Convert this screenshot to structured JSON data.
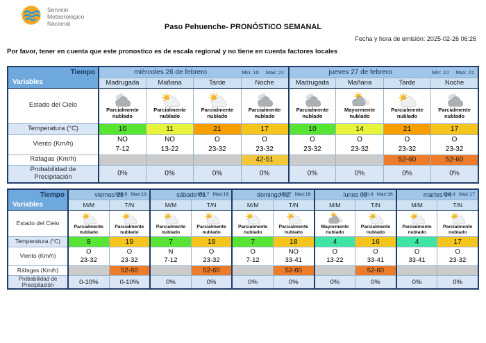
{
  "header": {
    "logo_icon": "smn-logo",
    "org_name_lines": [
      "Servicio",
      "Meteorológico",
      "Nacional"
    ],
    "title": "Paso Pehuenche- PRONÓSTICO SEMANAL",
    "emission": "Fecha y hora de emisión: 2025-02-26 06:26",
    "notice": "Por favor, tener en cuenta que este pronostico es de escala regional y no tiene en cuenta factores locales"
  },
  "row_labels": {
    "tiempo": "Tiempo",
    "variables": "Variables",
    "estado": "Estado del Cielo",
    "temperatura": "Temperatura (°C)",
    "viento": "Viento (Km/h)",
    "rafagas": "Ráfagas (Km/h)",
    "probabilidad": "Probabilidad de Precipitación"
  },
  "colors": {
    "header_blue": "#6FA8DC",
    "day_blue": "#9FC5E8",
    "period_blue": "#CFE2F3",
    "light_blue_row": "#D9E6F6",
    "empty_gust_gray": "#CBCBCB",
    "temp_teal": "#3FE5A3",
    "temp_green": "#57E432",
    "temp_yellow": "#E8F43C",
    "temp_amber": "#F6C51D",
    "temp_orange": "#F79E00",
    "gust_yellow": "#F2C83B",
    "gust_orange": "#EC7C29"
  },
  "table1": {
    "days": [
      {
        "name": "miércoles 26 de febrero",
        "min": "Min: 10",
        "max": "Max: 21"
      },
      {
        "name": "jueves 27 de febrero",
        "min": "Min: 10",
        "max": "Max: 21"
      }
    ],
    "periods": [
      "Madrugada",
      "Mañana",
      "Tarde",
      "Noche",
      "Madrugada",
      "Mañana",
      "Tarde",
      "Noche"
    ],
    "sky": [
      {
        "icon": "cloudy",
        "label": "Parcialmente nublado"
      },
      {
        "icon": "partly-cloudy-day",
        "label": "Parcialmente nublado"
      },
      {
        "icon": "partly-cloudy-day",
        "label": "Parcialmente nublado"
      },
      {
        "icon": "cloudy",
        "label": "Parcialmente nublado"
      },
      {
        "icon": "cloudy",
        "label": "Parcialmente nublado"
      },
      {
        "icon": "mostly-cloudy-day",
        "label": "Mayormente nublado"
      },
      {
        "icon": "partly-cloudy-day",
        "label": "Parcialmente nublado"
      },
      {
        "icon": "cloudy",
        "label": "Parcialmente nublado"
      }
    ],
    "temps": [
      {
        "value": "10",
        "bg": "#57E432"
      },
      {
        "value": "11",
        "bg": "#E8F43C"
      },
      {
        "value": "21",
        "bg": "#F79E00"
      },
      {
        "value": "17",
        "bg": "#F6C51D"
      },
      {
        "value": "10",
        "bg": "#57E432"
      },
      {
        "value": "14",
        "bg": "#E8F43C"
      },
      {
        "value": "21",
        "bg": "#F79E00"
      },
      {
        "value": "17",
        "bg": "#F6C51D"
      }
    ],
    "wind": [
      {
        "dir": "NO",
        "range": "7-12"
      },
      {
        "dir": "NO",
        "range": "13-22"
      },
      {
        "dir": "O",
        "range": "23-32"
      },
      {
        "dir": "O",
        "range": "23-32"
      },
      {
        "dir": "O",
        "range": "23-32"
      },
      {
        "dir": "O",
        "range": "23-32"
      },
      {
        "dir": "O",
        "range": "23-32"
      },
      {
        "dir": "O",
        "range": "23-32"
      }
    ],
    "gusts": [
      {
        "value": "",
        "bg": "#CBCBCB"
      },
      {
        "value": "",
        "bg": "#CBCBCB"
      },
      {
        "value": "",
        "bg": "#CBCBCB"
      },
      {
        "value": "42-51",
        "bg": "#F2C83B"
      },
      {
        "value": "",
        "bg": "#CBCBCB"
      },
      {
        "value": "",
        "bg": "#CBCBCB"
      },
      {
        "value": "52-60",
        "bg": "#EC7C29"
      },
      {
        "value": "52-60",
        "bg": "#EC7C29"
      }
    ],
    "precip": [
      "0%",
      "0%",
      "0%",
      "0%",
      "0%",
      "0%",
      "0%",
      "0%"
    ]
  },
  "table2": {
    "days": [
      {
        "name": "viernes 28",
        "min": "Min:8",
        "max": "Max:19"
      },
      {
        "name": "sábado 01",
        "min": "Min:7",
        "max": "Max:18"
      },
      {
        "name": "domingo 02",
        "min": "Min:7",
        "max": "Max:18"
      },
      {
        "name": "lunes 03",
        "min": "Min:4",
        "max": "Max:16"
      },
      {
        "name": "martes 04",
        "min": "Min:4",
        "max": "Max:17"
      }
    ],
    "periods": [
      "M/M",
      "T/N",
      "M/M",
      "T/N",
      "M/M",
      "T/N",
      "M/M",
      "T/N",
      "M/M",
      "T/N"
    ],
    "sky": [
      {
        "icon": "partly-cloudy-day",
        "label": "Parcialmente nublado"
      },
      {
        "icon": "partly-cloudy-day",
        "label": "Parcialmente nublado"
      },
      {
        "icon": "partly-cloudy-day",
        "label": "Parcialmente nublado"
      },
      {
        "icon": "partly-cloudy-day",
        "label": "Parcialmente nublado"
      },
      {
        "icon": "partly-cloudy-day",
        "label": "Parcialmente nublado"
      },
      {
        "icon": "partly-cloudy-day",
        "label": "Parcialmente nublado"
      },
      {
        "icon": "mostly-cloudy-day",
        "label": "Mayormente nublado"
      },
      {
        "icon": "partly-cloudy-day",
        "label": "Parcialmente nublado"
      },
      {
        "icon": "partly-cloudy-day",
        "label": "Parcialmente nublado"
      },
      {
        "icon": "partly-cloudy-day",
        "label": "Parcialmente nublado"
      }
    ],
    "temps": [
      {
        "value": "8",
        "bg": "#57E432"
      },
      {
        "value": "19",
        "bg": "#F6C51D"
      },
      {
        "value": "7",
        "bg": "#57E432"
      },
      {
        "value": "18",
        "bg": "#F6C51D"
      },
      {
        "value": "7",
        "bg": "#57E432"
      },
      {
        "value": "18",
        "bg": "#F6C51D"
      },
      {
        "value": "4",
        "bg": "#3FE5A3"
      },
      {
        "value": "16",
        "bg": "#F6C51D"
      },
      {
        "value": "4",
        "bg": "#3FE5A3"
      },
      {
        "value": "17",
        "bg": "#F6C51D"
      }
    ],
    "wind": [
      {
        "dir": "O",
        "range": "23-32"
      },
      {
        "dir": "O",
        "range": "23-32"
      },
      {
        "dir": "N",
        "range": "7-12"
      },
      {
        "dir": "O",
        "range": "23-32"
      },
      {
        "dir": "O",
        "range": "7-12"
      },
      {
        "dir": "NO",
        "range": "33-41"
      },
      {
        "dir": "O",
        "range": "13-22"
      },
      {
        "dir": "O",
        "range": "33-41"
      },
      {
        "dir": "O",
        "range": "33-41"
      },
      {
        "dir": "O",
        "range": "23-32"
      }
    ],
    "gusts": [
      {
        "value": "",
        "bg": "#CBCBCB"
      },
      {
        "value": "52-60",
        "bg": "#EC7C29"
      },
      {
        "value": "",
        "bg": "#CBCBCB"
      },
      {
        "value": "52-60",
        "bg": "#EC7C29"
      },
      {
        "value": "",
        "bg": "#CBCBCB"
      },
      {
        "value": "52-60",
        "bg": "#EC7C29"
      },
      {
        "value": "",
        "bg": "#CBCBCB"
      },
      {
        "value": "52-60",
        "bg": "#EC7C29"
      },
      {
        "value": "",
        "bg": "#CBCBCB"
      },
      {
        "value": "",
        "bg": "#CBCBCB"
      }
    ],
    "precip": [
      "0-10%",
      "0-10%",
      "0%",
      "0%",
      "0%",
      "0%",
      "0%",
      "0%",
      "0%",
      "0%"
    ]
  }
}
